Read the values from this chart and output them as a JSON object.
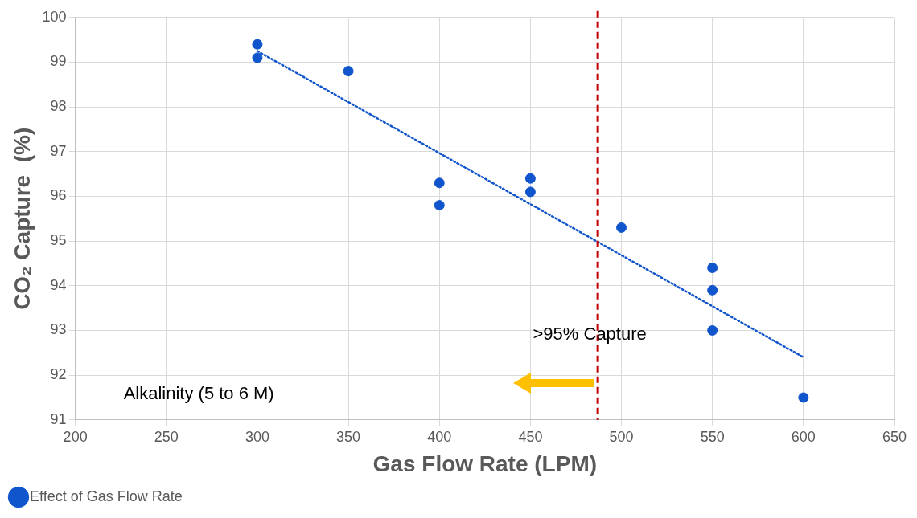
{
  "chart_data": {
    "type": "scatter",
    "xlabel": "Gas Flow Rate (LPM)",
    "ylabel": "CO₂ Capture  (%)",
    "x": [
      300,
      300,
      350,
      400,
      400,
      450,
      450,
      500,
      550,
      550,
      550,
      600
    ],
    "series": [
      {
        "name": "Effect of Gas Flow Rate",
        "color": "#1155cc",
        "values": [
          99.4,
          99.1,
          98.8,
          96.3,
          95.8,
          96.4,
          96.1,
          95.3,
          94.4,
          93.9,
          93.0,
          91.5
        ]
      },
      {
        "type": "line",
        "x": [
          300,
          600
        ],
        "values": [
          99.25,
          92.4
        ],
        "color": "#1155cc",
        "line_style": "dotted",
        "marker": "none"
      }
    ],
    "xlim": [
      200,
      650
    ],
    "xticks": [
      200,
      250,
      300,
      350,
      400,
      450,
      500,
      550,
      600,
      650
    ],
    "ylim": [
      91,
      100
    ],
    "yticks": [
      91,
      92,
      93,
      94,
      95,
      96,
      97,
      98,
      99,
      100
    ],
    "grid": true,
    "legend": "bottom left",
    "marker": "circle",
    "ref_lines": [
      {
        "axis": "x",
        "value": 487,
        "label": ">95% Capture",
        "color": "#c00000",
        "line_style": "dashed"
      }
    ],
    "annotations": [
      "Alkalinity (5 to 6 M)"
    ]
  }
}
